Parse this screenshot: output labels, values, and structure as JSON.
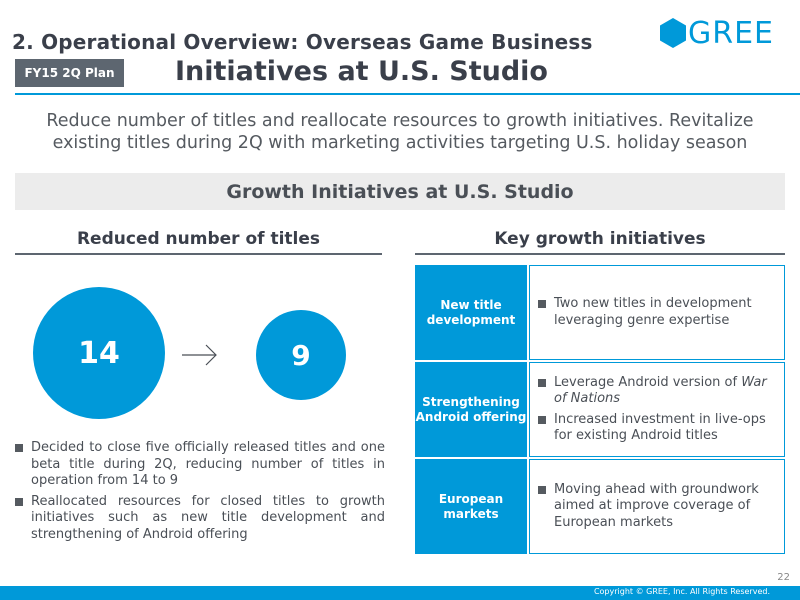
{
  "header": {
    "section_title": "2. Operational Overview: Overseas Game Business",
    "logo_text": "GREE",
    "plan_badge": "FY15 2Q Plan",
    "slide_title": "Initiatives at U.S. Studio"
  },
  "lead": {
    "line1": "Reduce number of titles and reallocate resources to growth initiatives. Revitalize",
    "line2": "existing titles during 2Q with marketing activities targeting U.S. holiday season"
  },
  "banner": "Growth Initiatives at U.S. Studio",
  "left": {
    "heading": "Reduced number of titles",
    "from_count": "14",
    "to_count": "9",
    "bullets": [
      "Decided to close five officially released titles and one beta title during 2Q, reducing number of titles in operation from 14 to 9",
      "Reallocated resources for closed titles to growth initiatives such as new title development and strengthening of Android offering"
    ]
  },
  "right": {
    "heading": "Key growth initiatives",
    "rows": [
      {
        "label": "New title development",
        "items": [
          "Two new titles in development leveraging genre expertise"
        ]
      },
      {
        "label": "Strengthening Android offering",
        "items": [
          {
            "prefix": "Leverage Android version of ",
            "italic": "War of Nations"
          },
          "Increased investment in live-ops for existing Android titles"
        ]
      },
      {
        "label": "European markets",
        "items": [
          "Moving ahead with groundwork aimed at improve coverage of European markets"
        ]
      }
    ]
  },
  "footer": {
    "page_number": "22",
    "copyright": "Copyright © GREE, Inc. All Rights Reserved."
  },
  "colors": {
    "accent": "#0099d9",
    "badge": "#5d6670",
    "banner_bg": "#ececec"
  }
}
